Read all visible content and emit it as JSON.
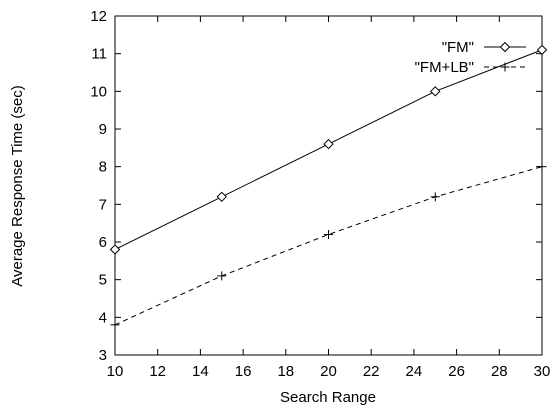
{
  "chart_data": {
    "type": "line",
    "title": "",
    "xlabel": "Search Range",
    "ylabel": "Average Response Time (sec)",
    "xlim": [
      10,
      30
    ],
    "ylim": [
      3,
      12
    ],
    "xticks": [
      10,
      12,
      14,
      16,
      18,
      20,
      22,
      24,
      26,
      28,
      30
    ],
    "yticks": [
      3,
      4,
      5,
      6,
      7,
      8,
      9,
      10,
      11,
      12
    ],
    "grid": false,
    "legend_position": "top-right",
    "series": [
      {
        "name": "\"FM\"",
        "marker": "diamond",
        "line_style": "solid",
        "color": "#000000",
        "x": [
          10,
          15,
          20,
          25,
          30
        ],
        "y": [
          5.8,
          7.2,
          8.6,
          10.0,
          11.1
        ]
      },
      {
        "name": "\"FM+LB\"",
        "marker": "plus",
        "line_style": "dashed",
        "color": "#000000",
        "x": [
          10,
          15,
          20,
          25,
          30
        ],
        "y": [
          3.8,
          5.1,
          6.2,
          7.2,
          8.0
        ]
      }
    ]
  }
}
